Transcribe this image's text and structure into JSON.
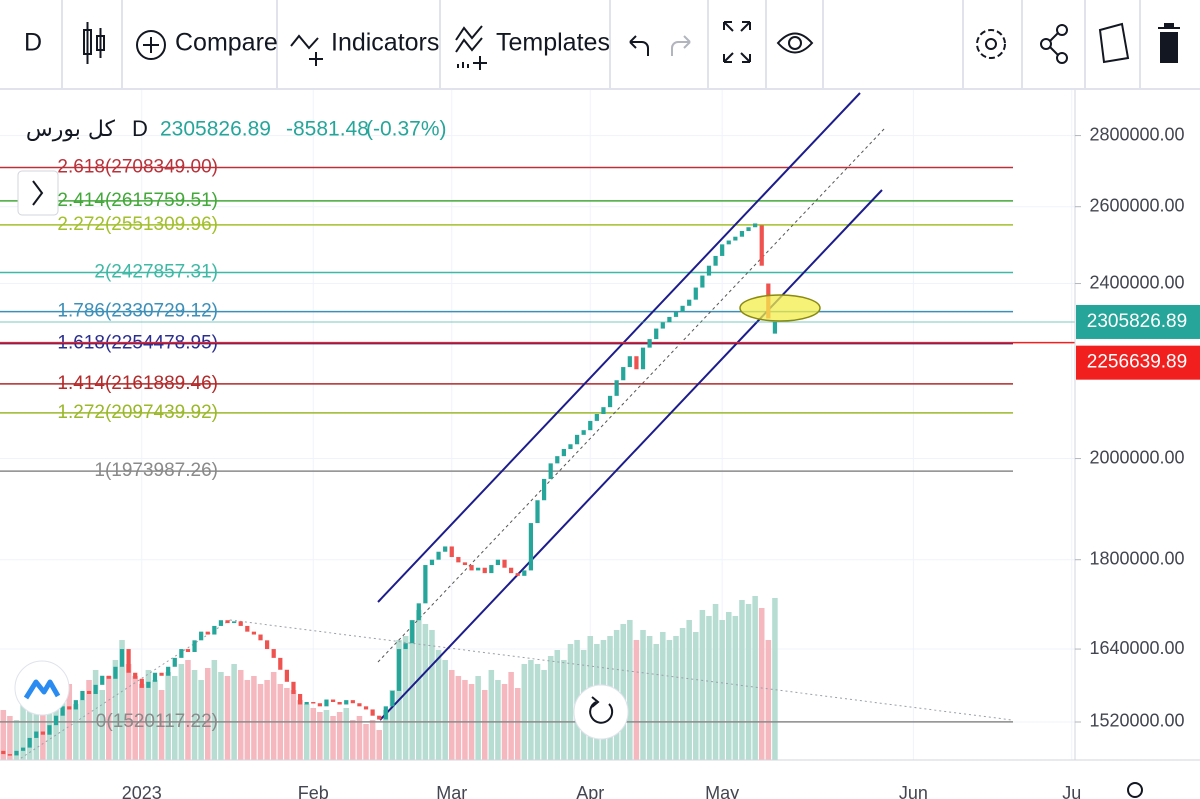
{
  "toolbar": {
    "interval": "D",
    "compare": "Compare",
    "indicators": "Indicators",
    "templates": "Templates"
  },
  "chart_data": {
    "type": "candlestick",
    "title": "کل بورس",
    "interval": "D",
    "last": 2305826.89,
    "change": -8581.48,
    "change_pct": {
      "value": -0.37,
      "label": "(-0.37%)"
    },
    "price_line": 2256639.89,
    "price_line_color": "#f21f1f",
    "up_color": "#26a69a",
    "down_color": "#ef5350",
    "volume_up_color": "#b7ddd3",
    "volume_down_color": "#f6b8bf",
    "categories": [
      null,
      null,
      null,
      null,
      null,
      null,
      null,
      null,
      null,
      null,
      null,
      null,
      null,
      null,
      null,
      null,
      null,
      null,
      null,
      null,
      null,
      "2023",
      null,
      null,
      null,
      null,
      null,
      null,
      null,
      null,
      null,
      null,
      null,
      null,
      null,
      null,
      null,
      null,
      null,
      null,
      null,
      null,
      null,
      null,
      null,
      null,
      null,
      "Feb",
      null,
      null,
      null,
      null,
      null,
      null,
      null,
      null,
      null,
      null,
      null,
      null,
      null,
      null,
      null,
      null,
      null,
      null,
      null,
      null,
      "Mar",
      null,
      null,
      null,
      null,
      null,
      null,
      null,
      null,
      null,
      null,
      null,
      null,
      null,
      null,
      null,
      null,
      null,
      null,
      null,
      null,
      "Apr",
      null,
      null,
      null,
      null,
      null,
      null,
      null,
      null,
      null,
      null,
      null,
      null,
      null,
      null,
      null,
      null,
      null,
      null,
      null,
      "May",
      null,
      null,
      null,
      null,
      null,
      null,
      null,
      null,
      null,
      null,
      null,
      null,
      null,
      null,
      null,
      null,
      null,
      null,
      null,
      null,
      null,
      null,
      null,
      null,
      null,
      null,
      null,
      null,
      "Jun",
      null,
      null,
      null,
      null,
      null,
      null,
      null,
      null,
      null,
      null,
      null,
      null,
      null,
      null,
      null,
      null,
      null,
      null,
      null,
      null,
      null,
      null,
      null,
      "Ju"
    ],
    "open": [
      1475000,
      1470000,
      1468000,
      1475000,
      1480000,
      1495000,
      1505000,
      1500000,
      1515000,
      1530000,
      1545000,
      1540000,
      1555000,
      1570000,
      1565000,
      1580000,
      1595000,
      1590000,
      1610000,
      1640000,
      1600000,
      1590000,
      1575000,
      1585000,
      1600000,
      1595000,
      1610000,
      1625000,
      1640000,
      1635000,
      1655000,
      1670000,
      1665000,
      1680000,
      1690000,
      1685000,
      1688000,
      1680000,
      1670000,
      1665000,
      1655000,
      1640000,
      1625000,
      1605000,
      1585000,
      1565000,
      1548000,
      1552000,
      1550000,
      1545000,
      1556000,
      1552000,
      1548000,
      1555000,
      1550000,
      1545000,
      1540000,
      1530000,
      1524000,
      1545000,
      1570000,
      1640000,
      1650000,
      1690000,
      1720000,
      1790000,
      1800000,
      1815000,
      1825000,
      1805000,
      1795000,
      1790000,
      1780000,
      1785000,
      1775000,
      1790000,
      1800000,
      1785000,
      1775000,
      1770000,
      1780000,
      1870000,
      1915000,
      1958000,
      1990000,
      2005000,
      2020000,
      2030000,
      2050000,
      2060000,
      2080000,
      2095000,
      2110000,
      2135000,
      2170000,
      2200000,
      2225000,
      2195000,
      2245000,
      2265000,
      2290000,
      2305000,
      2318000,
      2330000,
      2345000,
      2360000,
      2390000,
      2420000,
      2445000,
      2470000,
      2500000,
      2510000,
      2520000,
      2535000,
      2545000,
      2550000,
      2400000,
      2278000,
      null,
      null,
      null,
      null,
      null,
      null,
      null,
      null,
      null,
      null,
      null,
      null,
      null,
      null,
      null,
      null,
      null,
      null,
      null,
      null,
      null,
      null,
      null,
      null,
      null,
      null,
      null,
      null,
      null,
      null,
      null,
      null,
      null,
      null,
      null,
      null,
      null,
      null,
      null,
      null,
      null,
      null,
      null,
      null,
      null
    ],
    "close": [
      1470000,
      1468000,
      1475000,
      1480000,
      1495000,
      1505000,
      1500000,
      1515000,
      1530000,
      1545000,
      1540000,
      1555000,
      1570000,
      1565000,
      1580000,
      1595000,
      1590000,
      1610000,
      1640000,
      1600000,
      1590000,
      1575000,
      1585000,
      1600000,
      1595000,
      1610000,
      1625000,
      1640000,
      1635000,
      1655000,
      1670000,
      1665000,
      1680000,
      1690000,
      1685000,
      1688000,
      1680000,
      1670000,
      1665000,
      1655000,
      1640000,
      1625000,
      1605000,
      1585000,
      1565000,
      1548000,
      1552000,
      1550000,
      1545000,
      1556000,
      1552000,
      1548000,
      1555000,
      1550000,
      1545000,
      1540000,
      1530000,
      1524000,
      1545000,
      1570000,
      1640000,
      1650000,
      1690000,
      1720000,
      1790000,
      1800000,
      1815000,
      1825000,
      1805000,
      1795000,
      1790000,
      1780000,
      1785000,
      1775000,
      1790000,
      1800000,
      1785000,
      1775000,
      1770000,
      1780000,
      1870000,
      1915000,
      1958000,
      1990000,
      2005000,
      2020000,
      2030000,
      2050000,
      2060000,
      2080000,
      2095000,
      2110000,
      2135000,
      2170000,
      2200000,
      2225000,
      2195000,
      2245000,
      2265000,
      2290000,
      2305000,
      2318000,
      2330000,
      2345000,
      2360000,
      2390000,
      2420000,
      2445000,
      2470000,
      2500000,
      2510000,
      2520000,
      2535000,
      2545000,
      2555000,
      2445000,
      2314408.37,
      2305826.89,
      null,
      null,
      null,
      null,
      null,
      null,
      null,
      null,
      null,
      null,
      null,
      null,
      null,
      null,
      null,
      null,
      null,
      null,
      null,
      null,
      null,
      null,
      null,
      null,
      null,
      null,
      null,
      null,
      null,
      null,
      null,
      null,
      null,
      null,
      null,
      null,
      null,
      null,
      null,
      null,
      null,
      null,
      null,
      null,
      null
    ],
    "volume": [
      25,
      22,
      20,
      28,
      30,
      24,
      26,
      35,
      30,
      32,
      38,
      28,
      30,
      40,
      45,
      35,
      42,
      50,
      60,
      48,
      42,
      38,
      45,
      40,
      35,
      44,
      42,
      48,
      50,
      45,
      40,
      46,
      50,
      44,
      42,
      48,
      45,
      40,
      42,
      38,
      40,
      44,
      38,
      36,
      35,
      30,
      28,
      26,
      24,
      25,
      22,
      24,
      26,
      20,
      22,
      18,
      20,
      15,
      25,
      35,
      60,
      62,
      70,
      75,
      68,
      65,
      55,
      50,
      45,
      42,
      40,
      38,
      42,
      35,
      45,
      40,
      38,
      44,
      36,
      48,
      50,
      48,
      45,
      52,
      55,
      50,
      58,
      60,
      55,
      62,
      58,
      60,
      62,
      65,
      68,
      70,
      60,
      65,
      62,
      58,
      64,
      60,
      62,
      66,
      70,
      64,
      75,
      72,
      78,
      70,
      74,
      72,
      80,
      78,
      82,
      76,
      60,
      81,
      null,
      null,
      null,
      null,
      null,
      null,
      null,
      null,
      null,
      null,
      null,
      null,
      null,
      null,
      null,
      null,
      null,
      null,
      null,
      null,
      null,
      null,
      null,
      null,
      null,
      null,
      null,
      null,
      null,
      null,
      null,
      null,
      null,
      null,
      null,
      null,
      null,
      null,
      null,
      null,
      null,
      null,
      null,
      null,
      null
    ],
    "vlim": [
      0,
      100
    ],
    "ylim": [
      1461000,
      2930000
    ],
    "log_scale": true,
    "grid": true,
    "yticks": [
      {
        "value": 1520000,
        "label": "1520000.00"
      },
      {
        "value": 1640000,
        "label": "1640000.00"
      },
      {
        "value": 1800000,
        "label": "1800000.00"
      },
      {
        "value": 2000000,
        "label": "2000000.00"
      },
      {
        "value": 2400000,
        "label": "2400000.00"
      },
      {
        "value": 2600000,
        "label": "2600000.00"
      },
      {
        "value": 2800000,
        "label": "2800000.00"
      }
    ],
    "fib_levels": [
      {
        "label": "2.618(2708349.00)",
        "value": 2708349,
        "color": "#b9323a"
      },
      {
        "label": "2.414(2615759.51)",
        "value": 2615759.51,
        "color": "#43a83a"
      },
      {
        "label": "2.272(2551309.96)",
        "value": 2551309.96,
        "color": "#a2bf2c"
      },
      {
        "label": "2(2427857.31)",
        "value": 2427857.31,
        "color": "#3fb8a5"
      },
      {
        "label": "1.786(2330729.12)",
        "value": 2330729.12,
        "color": "#3c8fb8"
      },
      {
        "label": "1.618(2254478.95)",
        "value": 2254478.95,
        "color": "#2a2f8f"
      },
      {
        "label": "1.414(2161889.46)",
        "value": 2161889.46,
        "color": "#b22a2a"
      },
      {
        "label": "1.272(2097439.92)",
        "value": 2097439.92,
        "color": "#9ab82a"
      },
      {
        "label": "1(1973987.26)",
        "value": 1973987.26,
        "color": "#8a8a8a"
      },
      {
        "label": "0(1520117.22)",
        "value": 1520117.22,
        "color": "#8a8a8a"
      }
    ]
  }
}
